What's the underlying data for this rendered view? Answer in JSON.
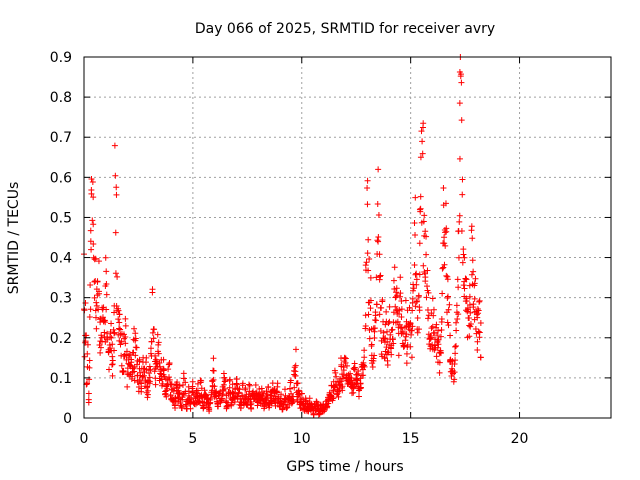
{
  "chart_data": {
    "type": "scatter",
    "title": "Day 066 of 2025, SRMTID for receiver avry",
    "xlabel": "GPS time / hours",
    "ylabel": "SRMTID / TECUs",
    "xlim": [
      0,
      24.2
    ],
    "ylim": [
      0,
      0.9
    ],
    "xticks": [
      0,
      5,
      10,
      15,
      20
    ],
    "xtick_labels": [
      "0",
      "5",
      "10",
      "15",
      "20"
    ],
    "yticks": [
      0,
      0.1,
      0.2,
      0.3,
      0.4,
      0.5,
      0.6,
      0.7,
      0.8,
      0.9
    ],
    "ytick_labels": [
      "0",
      "0.1",
      "0.2",
      "0.3",
      "0.4",
      "0.5",
      "0.6",
      "0.7",
      "0.8",
      "0.9"
    ],
    "grid": true,
    "marker": "+",
    "series": [
      {
        "name": "SRMTID",
        "color": "#ff0000",
        "x_step": 0.04,
        "x_start": 0,
        "values": [
          0.35,
          0.18,
          0.25,
          0.1,
          0.15,
          0.05,
          0.12,
          0.3,
          0.42,
          0.55,
          0.6,
          0.5,
          0.38,
          0.32,
          0.26,
          0.3,
          0.35,
          0.4,
          0.22,
          0.2,
          0.18,
          0.25,
          0.28,
          0.2,
          0.22,
          0.36,
          0.3,
          0.24,
          0.18,
          0.15,
          0.2,
          0.22,
          0.16,
          0.12,
          0.2,
          0.25,
          0.55,
          0.48,
          0.3,
          0.25,
          0.28,
          0.22,
          0.18,
          0.2,
          0.15,
          0.12,
          0.18,
          0.2,
          0.22,
          0.15,
          0.1,
          0.12,
          0.14,
          0.16,
          0.12,
          0.1,
          0.15,
          0.18,
          0.12,
          0.2,
          0.17,
          0.12,
          0.1,
          0.08,
          0.14,
          0.1,
          0.07,
          0.12,
          0.16,
          0.11,
          0.09,
          0.13,
          0.08,
          0.06,
          0.1,
          0.12,
          0.09,
          0.15,
          0.2,
          0.26,
          0.18,
          0.14,
          0.1,
          0.12,
          0.15,
          0.18,
          0.16,
          0.11,
          0.1,
          0.12,
          0.08,
          0.12,
          0.1,
          0.07,
          0.09,
          0.06,
          0.08,
          0.11,
          0.12,
          0.07,
          0.05,
          0.08,
          0.04,
          0.06,
          0.03,
          0.05,
          0.07,
          0.09,
          0.05,
          0.06,
          0.08,
          0.04,
          0.03,
          0.05,
          0.07,
          0.1,
          0.08,
          0.04,
          0.02,
          0.05,
          0.07,
          0.05,
          0.03,
          0.04,
          0.06,
          0.08,
          0.05,
          0.03,
          0.04,
          0.06,
          0.05,
          0.07,
          0.04,
          0.05,
          0.08,
          0.06,
          0.04,
          0.03,
          0.05,
          0.07,
          0.06,
          0.04,
          0.05,
          0.03,
          0.02,
          0.04,
          0.06,
          0.08,
          0.1,
          0.12,
          0.07,
          0.05,
          0.06,
          0.04,
          0.03,
          0.05,
          0.06,
          0.04,
          0.05,
          0.07,
          0.09,
          0.11,
          0.08,
          0.05,
          0.03,
          0.04,
          0.06,
          0.08,
          0.05,
          0.04,
          0.05,
          0.07,
          0.05,
          0.04,
          0.06,
          0.08,
          0.07,
          0.05,
          0.06,
          0.04,
          0.03,
          0.05,
          0.07,
          0.05,
          0.04,
          0.06,
          0.05,
          0.03,
          0.04,
          0.05,
          0.07,
          0.04,
          0.03,
          0.05,
          0.06,
          0.04,
          0.05,
          0.07,
          0.06,
          0.04,
          0.05,
          0.06,
          0.05,
          0.04,
          0.06,
          0.04,
          0.05,
          0.03,
          0.04,
          0.06,
          0.05,
          0.07,
          0.04,
          0.03,
          0.05,
          0.06,
          0.04,
          0.07,
          0.06,
          0.05,
          0.04,
          0.06,
          0.08,
          0.05,
          0.04,
          0.03,
          0.05,
          0.04,
          0.02,
          0.03,
          0.05,
          0.06,
          0.04,
          0.03,
          0.05,
          0.04,
          0.06,
          0.08,
          0.06,
          0.04,
          0.05,
          0.1,
          0.12,
          0.14,
          0.08,
          0.05,
          0.07,
          0.06,
          0.04,
          0.03,
          0.05,
          0.04,
          0.03,
          0.02,
          0.03,
          0.04,
          0.02,
          0.03,
          0.02,
          0.04,
          0.03,
          0.02,
          0.03,
          0.02,
          0.01,
          0.03,
          0.02,
          0.04,
          0.03,
          0.02,
          0.01,
          0.02,
          0.03,
          0.02,
          0.02,
          0.03,
          0.02,
          0.03,
          0.04,
          0.03,
          0.05,
          0.04,
          0.06,
          0.05,
          0.07,
          0.05,
          0.06,
          0.08,
          0.1,
          0.09,
          0.07,
          0.08,
          0.06,
          0.08,
          0.1,
          0.12,
          0.09,
          0.08,
          0.11,
          0.13,
          0.12,
          0.1,
          0.11,
          0.09,
          0.08,
          0.1,
          0.11,
          0.09,
          0.07,
          0.08,
          0.1,
          0.12,
          0.11,
          0.09,
          0.08,
          0.1,
          0.06,
          0.07,
          0.09,
          0.11,
          0.12,
          0.14,
          0.16,
          0.22,
          0.45,
          0.5,
          0.4,
          0.32,
          0.25,
          0.28,
          0.2,
          0.18,
          0.15,
          0.18,
          0.2,
          0.25,
          0.3,
          0.46,
          0.55,
          0.44,
          0.3,
          0.22,
          0.2,
          0.24,
          0.18,
          0.16,
          0.2,
          0.22,
          0.18,
          0.15,
          0.2,
          0.25,
          0.22,
          0.2,
          0.18,
          0.24,
          0.28,
          0.35,
          0.3,
          0.26,
          0.22,
          0.2,
          0.25,
          0.3,
          0.28,
          0.22,
          0.18,
          0.2,
          0.22,
          0.25,
          0.2,
          0.18,
          0.22,
          0.24,
          0.26,
          0.22,
          0.2,
          0.24,
          0.32,
          0.4,
          0.45,
          0.35,
          0.3,
          0.28,
          0.25,
          0.3,
          0.45,
          0.55,
          0.6,
          0.68,
          0.5,
          0.42,
          0.38,
          0.4,
          0.32,
          0.25,
          0.22,
          0.2,
          0.18,
          0.22,
          0.2,
          0.24,
          0.22,
          0.19,
          0.21,
          0.18,
          0.2,
          0.16,
          0.14,
          0.18,
          0.2,
          0.3,
          0.35,
          0.55,
          0.5,
          0.45,
          0.38,
          0.3,
          0.28,
          0.25,
          0.18,
          0.15,
          0.12,
          0.14,
          0.1,
          0.12,
          0.16,
          0.2,
          0.24,
          0.3,
          0.4,
          0.62,
          0.8,
          0.75,
          0.6,
          0.5,
          0.42,
          0.35,
          0.3,
          0.28,
          0.25,
          0.24,
          0.26,
          0.28,
          0.3,
          0.4,
          0.42,
          0.35,
          0.3,
          0.28,
          0.26,
          0.22,
          0.25,
          0.27,
          0.24,
          0.2
        ]
      }
    ]
  }
}
